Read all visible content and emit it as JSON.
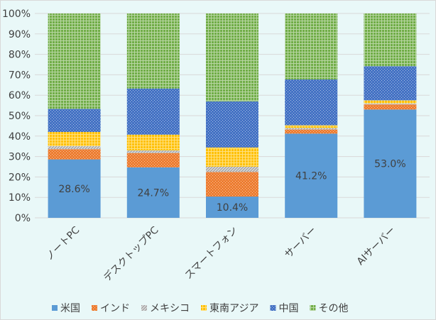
{
  "chart_data": {
    "type": "bar",
    "stacked": "percent",
    "categories": [
      "ノートPC",
      "デスクトップPC",
      "スマートフォン",
      "サーバー",
      "AIサーバー"
    ],
    "series": [
      {
        "name": "米国",
        "values": [
          28.6,
          24.7,
          10.4,
          41.2,
          53.0
        ],
        "color": "#5b9bd5",
        "pattern": "solid"
      },
      {
        "name": "インド",
        "values": [
          5.0,
          7.0,
          12.0,
          2.0,
          2.5
        ],
        "color": "#ed7d31",
        "pattern": "dots"
      },
      {
        "name": "メキシコ",
        "values": [
          1.5,
          1.3,
          2.6,
          0.8,
          0.5
        ],
        "color": "#a5a5a5",
        "pattern": "diagonal"
      },
      {
        "name": "東南アジア",
        "values": [
          6.9,
          7.7,
          9.4,
          1.3,
          1.5
        ],
        "color": "#ffc000",
        "pattern": "grid"
      },
      {
        "name": "中国",
        "values": [
          11.3,
          22.6,
          22.6,
          22.4,
          16.7
        ],
        "color": "#4472c4",
        "pattern": "dots"
      },
      {
        "name": "その他",
        "values": [
          46.7,
          36.7,
          43.0,
          32.3,
          25.8
        ],
        "color": "#70ad47",
        "pattern": "grid"
      }
    ],
    "data_labels": {
      "series": "米国",
      "labels": [
        "28.6%",
        "24.7%",
        "10.4%",
        "41.2%",
        "53.0%"
      ]
    },
    "y_ticks": [
      "0%",
      "10%",
      "20%",
      "30%",
      "40%",
      "50%",
      "60%",
      "70%",
      "80%",
      "90%",
      "100%"
    ],
    "ylim": [
      0,
      100
    ],
    "grid": true,
    "legend_position": "bottom",
    "title": "",
    "xlabel": "",
    "ylabel": ""
  }
}
